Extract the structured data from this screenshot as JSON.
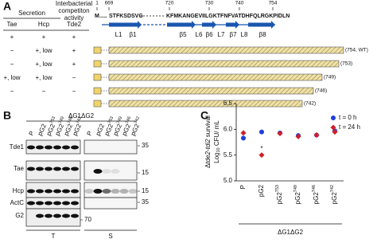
{
  "panel_a": {
    "label": "A",
    "secretion": "Secretion",
    "competition": [
      "Interbacterial",
      "competiton",
      "activity"
    ],
    "columns": [
      "Tae",
      "Hcp",
      "Tde2"
    ],
    "rows": [
      [
        "+",
        "+",
        "+"
      ],
      [
        "−",
        "+, low",
        "+"
      ],
      [
        "−",
        "+, low",
        "+"
      ],
      [
        "+, low",
        "+, low",
        "−"
      ],
      [
        "−",
        "−",
        "−"
      ]
    ],
    "residues": [
      "1",
      "669",
      "720",
      "730",
      "740",
      "754"
    ],
    "sequence": [
      "M",
      ".....",
      "STFKSDSVG",
      "KFMKANGEVIILGKTFNFVATDHFQLRGKPIDLN"
    ],
    "structure": [
      "L1",
      "β1",
      "β5",
      "L6",
      "β6",
      "L7",
      "β7",
      "L8",
      "β8"
    ],
    "constructs": [
      "(754, WT)",
      "(753)",
      "(749)",
      "(746)",
      "(742)"
    ]
  },
  "panel_b": {
    "label": "B",
    "strain": "ΔG1ΔG2",
    "lanes": [
      {
        "text": "P"
      },
      {
        "text": "pG2"
      },
      {
        "text": "pG2",
        "sup": "753"
      },
      {
        "text": "pG2",
        "sup": "749"
      },
      {
        "text": "pG2",
        "sup": "746"
      },
      {
        "text": "pG2",
        "sup": "742"
      }
    ],
    "proteins": [
      "Tde1",
      "Tae",
      "Hcp",
      "ActC",
      "G2"
    ],
    "markers": [
      35,
      15,
      15,
      35,
      70
    ],
    "fractions": [
      "T",
      "S"
    ]
  },
  "chart_data": {
    "type": "scatter",
    "label": "C",
    "ylabel": [
      [
        "Δ",
        "tde2-tdi2",
        " survival"
      ],
      [
        "Log",
        "10",
        " CFU/ mL"
      ]
    ],
    "categories": [
      {
        "text": "P"
      },
      {
        "text": "pG2"
      },
      {
        "text": "pG2",
        "sup": "753"
      },
      {
        "text": "pG2",
        "sup": "749"
      },
      {
        "text": "pG2",
        "sup": "746"
      },
      {
        "text": "pG2",
        "sup": "742"
      }
    ],
    "group": "ΔG1ΔG2",
    "series": [
      {
        "name": "t = 0 h",
        "color": "#1f3fd6",
        "marker": "circle",
        "values": [
          5.83,
          5.95,
          5.93,
          5.88,
          5.89,
          5.97
        ]
      },
      {
        "name": "t = 24 h",
        "color": "#d0202a",
        "marker": "diamond",
        "values": [
          5.93,
          5.5,
          5.92,
          5.86,
          5.89,
          5.95
        ]
      }
    ],
    "annotation": "*",
    "ylim": [
      5.0,
      6.5
    ],
    "yticks": [
      {
        "value": 5.0,
        "label": "5.0"
      },
      5.5,
      {
        "value": 6.0,
        "label": "6.0"
      },
      6.5
    ]
  }
}
